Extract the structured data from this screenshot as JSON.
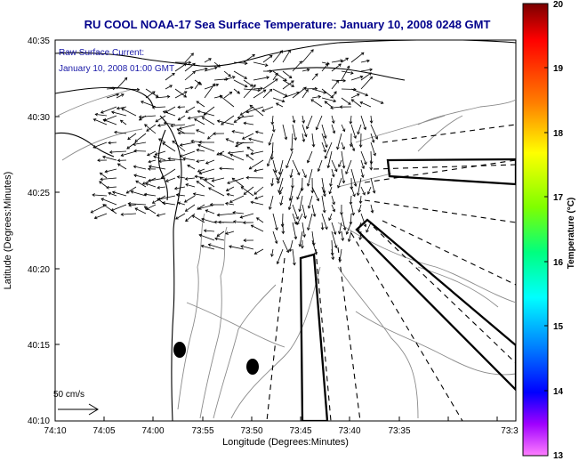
{
  "title": "RU COOL  NOAA-17  Sea Surface Temperature:  January 10, 2008 0248 GMT",
  "overlay": {
    "line1": "Raw Surface Current:",
    "line2": "January 10, 2008 01:00 GMT"
  },
  "axes": {
    "x_label": "Longitude (Degrees:Minutes)",
    "y_label": "Latitude (Degrees:Minutes)",
    "x_ticks": [
      "74:10",
      "74:05",
      "74:00",
      "73:55",
      "73:50",
      "73:45",
      "73:40",
      "73:35",
      "73:3"
    ],
    "y_ticks": [
      "40:35",
      "40:30",
      "40:25",
      "40:20",
      "40:15",
      "40:10"
    ],
    "x_range_min": [
      -610,
      -573
    ],
    "y_range_min": [
      2410,
      2435
    ]
  },
  "colorbar": {
    "label": "Temperature (°C)",
    "ticks": [
      "20",
      "19",
      "18",
      "17",
      "16",
      "15",
      "14",
      "13"
    ],
    "range": [
      13,
      20
    ]
  },
  "scale_legend": {
    "label": "50 cm/s",
    "speed_cm_s": 50
  },
  "colors": {
    "title": "#00008b",
    "overlay": "#1a1aa8",
    "land_line": "#000000",
    "contour": "#8a8a8a"
  }
}
